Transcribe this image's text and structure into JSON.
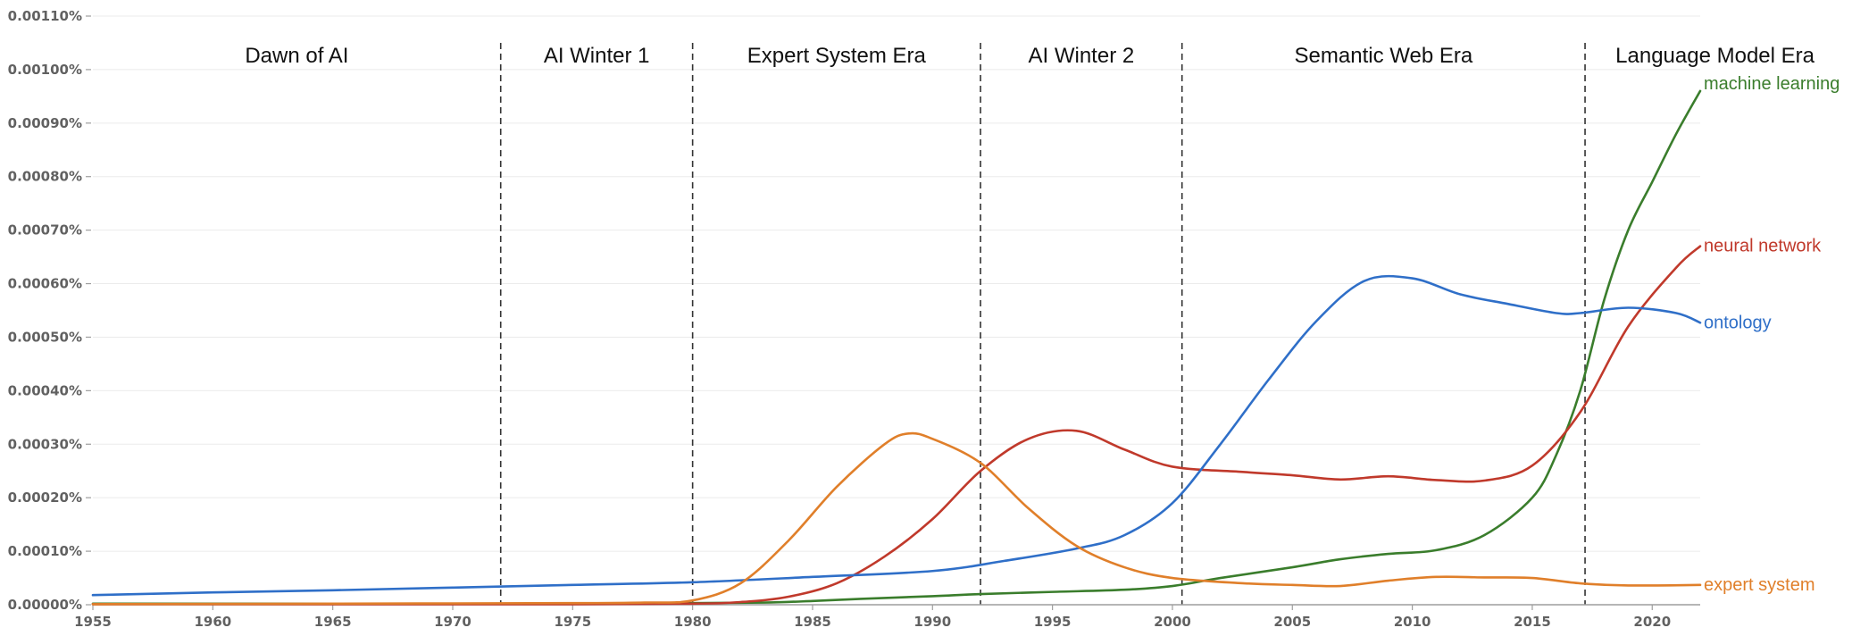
{
  "chart_data": {
    "type": "line",
    "title": "",
    "xlabel": "",
    "ylabel": "",
    "xlim": [
      1955,
      2022
    ],
    "ylim": [
      0,
      0.0011
    ],
    "grid": true,
    "legend": "labels at line ends (right)",
    "y_ticks": [
      {
        "value": 0.0,
        "label": "0.00000%"
      },
      {
        "value": 0.0001,
        "label": "0.00010%"
      },
      {
        "value": 0.0002,
        "label": "0.00020%"
      },
      {
        "value": 0.0003,
        "label": "0.00030%"
      },
      {
        "value": 0.0004,
        "label": "0.00040%"
      },
      {
        "value": 0.0005,
        "label": "0.00050%"
      },
      {
        "value": 0.0006,
        "label": "0.00060%"
      },
      {
        "value": 0.0007,
        "label": "0.00070%"
      },
      {
        "value": 0.0008,
        "label": "0.00080%"
      },
      {
        "value": 0.0009,
        "label": "0.00090%"
      },
      {
        "value": 0.001,
        "label": "0.00100%"
      },
      {
        "value": 0.0011,
        "label": "0.00110%"
      }
    ],
    "x_ticks": [
      {
        "value": 1955,
        "label": "1955"
      },
      {
        "value": 1960,
        "label": "1960"
      },
      {
        "value": 1965,
        "label": "1965"
      },
      {
        "value": 1970,
        "label": "1970"
      },
      {
        "value": 1975,
        "label": "1975"
      },
      {
        "value": 1980,
        "label": "1980"
      },
      {
        "value": 1985,
        "label": "1985"
      },
      {
        "value": 1990,
        "label": "1990"
      },
      {
        "value": 1995,
        "label": "1995"
      },
      {
        "value": 2000,
        "label": "2000"
      },
      {
        "value": 2005,
        "label": "2005"
      },
      {
        "value": 2010,
        "label": "2010"
      },
      {
        "value": 2015,
        "label": "2015"
      },
      {
        "value": 2020,
        "label": "2020"
      }
    ],
    "eras": [
      {
        "label": "Dawn of AI",
        "start": 1955,
        "end": 1972
      },
      {
        "label": "AI Winter 1",
        "start": 1972,
        "end": 1980
      },
      {
        "label": "Expert System Era",
        "start": 1980,
        "end": 1992
      },
      {
        "label": "AI Winter 2",
        "start": 1992,
        "end": 2000.4
      },
      {
        "label": "Semantic Web Era",
        "start": 2000.4,
        "end": 2017.2
      },
      {
        "label": "Language Model Era",
        "start": 2017.2,
        "end": 2022
      }
    ],
    "era_boundaries": [
      1972,
      1980,
      1992,
      2000.4,
      2017.2
    ],
    "series": [
      {
        "name": "machine learning",
        "color": "#3a7d2c",
        "points": [
          [
            1955,
            2e-06
          ],
          [
            1960,
            2e-06
          ],
          [
            1965,
            2e-06
          ],
          [
            1970,
            2e-06
          ],
          [
            1975,
            2e-06
          ],
          [
            1980,
            3e-06
          ],
          [
            1983,
            4e-06
          ],
          [
            1985,
            7e-06
          ],
          [
            1987,
            1.1e-05
          ],
          [
            1990,
            1.6e-05
          ],
          [
            1992,
            2e-05
          ],
          [
            1995,
            2.4e-05
          ],
          [
            1998,
            2.8e-05
          ],
          [
            2000,
            3.5e-05
          ],
          [
            2002,
            5e-05
          ],
          [
            2005,
            7e-05
          ],
          [
            2007,
            8.5e-05
          ],
          [
            2009,
            9.5e-05
          ],
          [
            2011,
            0.000102
          ],
          [
            2013,
            0.00013
          ],
          [
            2015,
            0.0002
          ],
          [
            2016,
            0.00028
          ],
          [
            2017,
            0.0004
          ],
          [
            2018,
            0.00057
          ],
          [
            2019,
            0.0007
          ],
          [
            2020,
            0.00079
          ],
          [
            2021,
            0.00088
          ],
          [
            2022,
            0.00096
          ]
        ]
      },
      {
        "name": "neural network",
        "color": "#c0392b",
        "points": [
          [
            1955,
            1e-06
          ],
          [
            1965,
            1e-06
          ],
          [
            1975,
            1e-06
          ],
          [
            1980,
            2e-06
          ],
          [
            1982,
            5e-06
          ],
          [
            1984,
            1.5e-05
          ],
          [
            1986,
            4e-05
          ],
          [
            1988,
            9e-05
          ],
          [
            1990,
            0.00016
          ],
          [
            1992,
            0.00025
          ],
          [
            1994,
            0.00031
          ],
          [
            1996,
            0.000325
          ],
          [
            1998,
            0.00029
          ],
          [
            2000,
            0.000258
          ],
          [
            2003,
            0.000248
          ],
          [
            2005,
            0.000242
          ],
          [
            2007,
            0.000234
          ],
          [
            2009,
            0.00024
          ],
          [
            2011,
            0.000233
          ],
          [
            2013,
            0.000232
          ],
          [
            2015,
            0.00026
          ],
          [
            2017,
            0.00036
          ],
          [
            2019,
            0.00052
          ],
          [
            2021,
            0.00063
          ],
          [
            2022,
            0.00067
          ]
        ]
      },
      {
        "name": "ontology",
        "color": "#2f6fc8",
        "points": [
          [
            1955,
            1.8e-05
          ],
          [
            1960,
            2.3e-05
          ],
          [
            1965,
            2.7e-05
          ],
          [
            1970,
            3.2e-05
          ],
          [
            1975,
            3.7e-05
          ],
          [
            1980,
            4.2e-05
          ],
          [
            1985,
            5.2e-05
          ],
          [
            1990,
            6.3e-05
          ],
          [
            1993,
            8.2e-05
          ],
          [
            1996,
            0.000105
          ],
          [
            1998,
            0.00013
          ],
          [
            2000,
            0.00019
          ],
          [
            2002,
            0.0003
          ],
          [
            2004,
            0.00042
          ],
          [
            2006,
            0.00053
          ],
          [
            2008,
            0.000605
          ],
          [
            2010,
            0.00061
          ],
          [
            2012,
            0.00058
          ],
          [
            2014,
            0.000562
          ],
          [
            2016,
            0.000545
          ],
          [
            2017,
            0.000545
          ],
          [
            2019,
            0.000555
          ],
          [
            2021,
            0.000545
          ],
          [
            2022,
            0.000527
          ]
        ]
      },
      {
        "name": "expert system",
        "color": "#e07f2a",
        "points": [
          [
            1955,
            1e-06
          ],
          [
            1965,
            2e-06
          ],
          [
            1975,
            3e-06
          ],
          [
            1978,
            4e-06
          ],
          [
            1980,
            8e-06
          ],
          [
            1982,
            4e-05
          ],
          [
            1984,
            0.00012
          ],
          [
            1986,
            0.00022
          ],
          [
            1988,
            0.0003
          ],
          [
            1989,
            0.00032
          ],
          [
            1990,
            0.00031
          ],
          [
            1992,
            0.000265
          ],
          [
            1994,
            0.00018
          ],
          [
            1996,
            0.00011
          ],
          [
            1998,
            7e-05
          ],
          [
            2000,
            5e-05
          ],
          [
            2003,
            4e-05
          ],
          [
            2005,
            3.7e-05
          ],
          [
            2007,
            3.5e-05
          ],
          [
            2009,
            4.5e-05
          ],
          [
            2011,
            5.2e-05
          ],
          [
            2013,
            5.1e-05
          ],
          [
            2015,
            5e-05
          ],
          [
            2017,
            4e-05
          ],
          [
            2019,
            3.6e-05
          ],
          [
            2022,
            3.7e-05
          ]
        ]
      }
    ]
  }
}
